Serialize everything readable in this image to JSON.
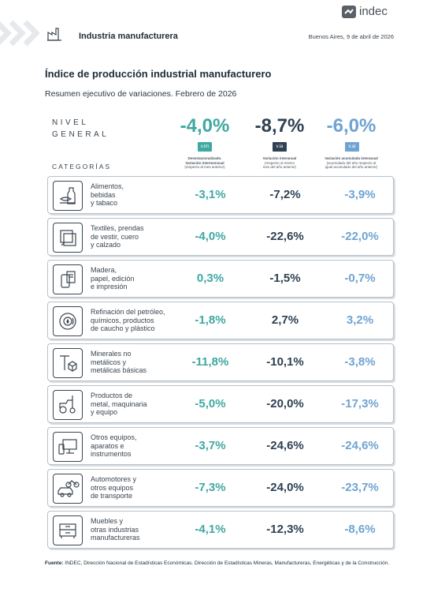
{
  "header": {
    "logo_text": "indec",
    "title": "Industria manufacturera",
    "date": "Buenos Aires, 9 de abril de 2026"
  },
  "doc": {
    "title": "Índice de producción industrial manufacturero",
    "subtitle": "Resumen ejecutivo de variaciones. Febrero de 2026"
  },
  "summary": {
    "label_line1": "NIVEL",
    "label_line2": "GENERAL",
    "columns": [
      {
        "value": "-4,0%",
        "tag": "v.im",
        "note_line1": "Desestacionalizado.",
        "note_line2": "Variación intermensual",
        "note_line3": "(respecto al mes anterior)",
        "color": "#3fa8a2"
      },
      {
        "value": "-8,7%",
        "tag": "v.ia",
        "note_line1": "Variación interanual",
        "note_line2": "(respecto al mismo",
        "note_line3": "mes del año anterior)",
        "color": "#2e4152"
      },
      {
        "value": "-6,0%",
        "tag": "v.ai",
        "note_line1": "Variación acumulada interanual",
        "note_line2": "(acumulado del año respecto al",
        "note_line3": "igual acumulado del año anterior)",
        "color": "#6fa3d2"
      }
    ]
  },
  "categories_label": "CATEGORÍAS",
  "rows": [
    {
      "line1": "Alimentos,",
      "line2": "bebidas",
      "line3": "y tabaco",
      "im": "-3,1%",
      "ia": "-7,2%",
      "ai": "-3,9%",
      "icon": "food-icon"
    },
    {
      "line1": "Textiles, prendas",
      "line2": "de vestir, cuero",
      "line3": "y calzado",
      "im": "-4,0%",
      "ia": "-22,6%",
      "ai": "-22,0%",
      "icon": "textile-icon"
    },
    {
      "line1": "Madera,",
      "line2": "papel, edición",
      "line3": "e impresión",
      "im": "0,3%",
      "ia": "-1,5%",
      "ai": "-0,7%",
      "icon": "wood-paper-icon"
    },
    {
      "line1": "Refinación del petróleo,",
      "line2": "químicos, productos",
      "line3": "de caucho y plástico",
      "im": "-1,8%",
      "ia": "2,7%",
      "ai": "3,2%",
      "icon": "oil-chemicals-icon"
    },
    {
      "line1": "Minerales no",
      "line2": "metálicos y",
      "line3": "metálicas básicas",
      "im": "-11,8%",
      "ia": "-10,1%",
      "ai": "-3,8%",
      "icon": "minerals-icon"
    },
    {
      "line1": "Productos de",
      "line2": "metal, maquinaria",
      "line3": "y equipo",
      "im": "-5,0%",
      "ia": "-20,0%",
      "ai": "-17,3%",
      "icon": "tractor-icon"
    },
    {
      "line1": "Otros equipos,",
      "line2": "aparatos e",
      "line3": "instrumentos",
      "im": "-3,7%",
      "ia": "-24,6%",
      "ai": "-24,6%",
      "icon": "devices-icon"
    },
    {
      "line1": "Automotores y",
      "line2": "otros equipos",
      "line3": "de transporte",
      "im": "-7,3%",
      "ia": "-24,0%",
      "ai": "-23,7%",
      "icon": "vehicles-icon"
    },
    {
      "line1": "Muebles y",
      "line2": "otras industrias",
      "line3": "manufactureras",
      "im": "-4,1%",
      "ia": "-12,3%",
      "ai": "-8,6%",
      "icon": "furniture-icon"
    }
  ],
  "footer": {
    "label": "Fuente:",
    "text": "INDEC, Dirección Nacional de Estadísticas Económicas. Dirección de Estadísticas Mineras, Manufactureras, Energéticas y de la Construcción."
  }
}
